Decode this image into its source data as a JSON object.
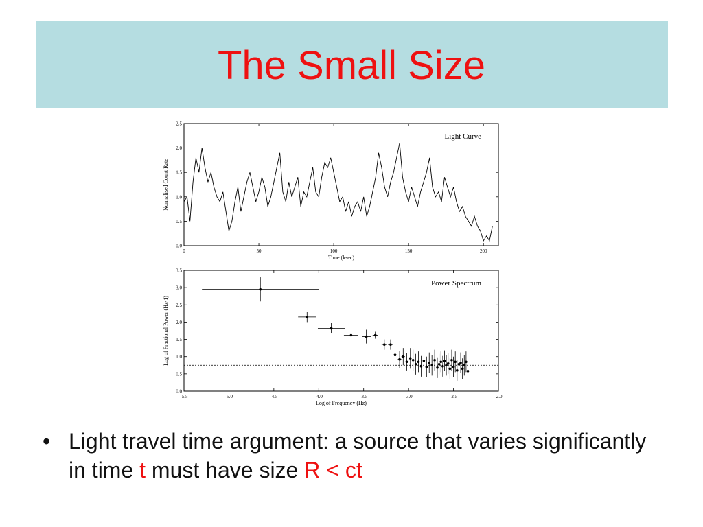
{
  "slide": {
    "title": "The Small Size",
    "bullet_marker": "•",
    "bullet_text_1": "Light travel time argument: a source that varies significantly in time ",
    "bullet_t": "t",
    "bullet_text_2": " must have size ",
    "bullet_formula": "R < ct",
    "accent_color": "#ee1111",
    "title_band_color": "#b5dde1"
  },
  "chart_data": [
    {
      "type": "line",
      "title": "Light Curve",
      "xlabel": "Time (ksec)",
      "ylabel": "Normalised Count Rate",
      "xlim": [
        0,
        210
      ],
      "ylim": [
        0,
        2.5
      ],
      "xticks": [
        "0",
        "50",
        "100",
        "150",
        "200"
      ],
      "yticks": [
        "0.0",
        "0.5",
        "1.0",
        "1.5",
        "2.0",
        "2.5"
      ],
      "legend_placement": "top-right",
      "grid": false,
      "series": [
        {
          "x": [
            0,
            2,
            4,
            6,
            8,
            10,
            12,
            14,
            16,
            18,
            20,
            22,
            24,
            26,
            28,
            30,
            32,
            34,
            36,
            38,
            40,
            42,
            44,
            46,
            48,
            50,
            52,
            54,
            56,
            58,
            60,
            62,
            64,
            66,
            68,
            70,
            72,
            74,
            76,
            78,
            80,
            82,
            84,
            86,
            88,
            90,
            92,
            94,
            96,
            98,
            100,
            102,
            104,
            106,
            108,
            110,
            112,
            114,
            116,
            118,
            120,
            122,
            124,
            126,
            128,
            130,
            132,
            134,
            136,
            138,
            140,
            142,
            144,
            146,
            148,
            150,
            152,
            154,
            156,
            158,
            160,
            162,
            164,
            166,
            168,
            170,
            172,
            174,
            176,
            178,
            180,
            182,
            184,
            186,
            188,
            190,
            192,
            194,
            196,
            198,
            200,
            202,
            204,
            206
          ],
          "values": [
            0.9,
            1.0,
            0.5,
            1.3,
            1.8,
            1.5,
            2.0,
            1.6,
            1.3,
            1.5,
            1.2,
            1.0,
            0.9,
            1.1,
            0.7,
            0.3,
            0.5,
            0.9,
            1.2,
            0.7,
            1.0,
            1.3,
            1.5,
            1.2,
            0.9,
            1.1,
            1.4,
            1.2,
            0.8,
            1.0,
            1.3,
            1.6,
            1.9,
            1.1,
            0.9,
            1.3,
            1.0,
            1.2,
            1.4,
            0.8,
            1.1,
            1.0,
            1.3,
            1.6,
            1.1,
            1.0,
            1.4,
            1.7,
            1.6,
            1.8,
            1.5,
            1.2,
            0.9,
            1.0,
            0.7,
            0.9,
            0.6,
            0.8,
            0.9,
            0.7,
            1.0,
            0.6,
            0.8,
            1.1,
            1.4,
            1.9,
            1.6,
            1.2,
            1.0,
            1.3,
            1.5,
            1.8,
            2.1,
            1.4,
            1.1,
            0.9,
            1.2,
            1.0,
            0.8,
            1.1,
            1.3,
            1.5,
            1.8,
            1.2,
            1.0,
            1.1,
            0.9,
            1.4,
            1.2,
            1.0,
            1.2,
            0.9,
            0.7,
            0.8,
            0.6,
            0.5,
            0.4,
            0.6,
            0.4,
            0.3,
            0.1,
            0.2,
            0.1,
            0.4
          ]
        }
      ]
    },
    {
      "type": "scatter",
      "title": "Power Spectrum",
      "xlabel": "Log of Frequency (Hz)",
      "ylabel": "Log of Fractional Power (Hz-1)",
      "xlim": [
        -5.5,
        -2.0
      ],
      "ylim": [
        0.0,
        3.5
      ],
      "xticks": [
        "-5.5",
        "-5.0",
        "-4.5",
        "-4.0",
        "-3.5",
        "-3.0",
        "-2.5",
        "-2.0"
      ],
      "yticks": [
        "0.0",
        "0.5",
        "1.0",
        "1.5",
        "2.0",
        "2.5",
        "3.0",
        "3.5"
      ],
      "reference_line_y": 0.75,
      "legend_placement": "top-right",
      "grid": false,
      "series": [
        {
          "x": [
            -4.65,
            -4.13,
            -3.86,
            -3.64,
            -3.47,
            -3.37,
            -3.27,
            -3.2,
            -3.15,
            -3.1,
            -3.06,
            -3.02,
            -2.98,
            -2.95,
            -2.92,
            -2.89,
            -2.86,
            -2.83,
            -2.8,
            -2.77,
            -2.74,
            -2.71,
            -2.68,
            -2.66,
            -2.64,
            -2.62,
            -2.6,
            -2.58,
            -2.56,
            -2.54,
            -2.52,
            -2.5,
            -2.48,
            -2.46,
            -2.44,
            -2.42,
            -2.4,
            -2.38,
            -2.36,
            -2.34
          ],
          "y": [
            2.95,
            2.15,
            1.82,
            1.62,
            1.58,
            1.62,
            1.35,
            1.35,
            1.05,
            0.92,
            1.0,
            0.85,
            0.95,
            0.9,
            0.78,
            0.85,
            0.72,
            0.88,
            0.7,
            0.82,
            0.75,
            0.9,
            0.68,
            0.78,
            0.85,
            0.72,
            0.88,
            0.75,
            0.8,
            0.65,
            0.9,
            0.7,
            0.85,
            0.6,
            0.78,
            0.82,
            0.65,
            0.75,
            0.85,
            0.58
          ],
          "xerr": [
            0.65,
            0.1,
            0.15,
            0.08,
            0.05,
            0.03,
            0.03,
            0.03,
            0.02,
            0.02,
            0.02,
            0.02,
            0.01,
            0.01,
            0.01,
            0.01,
            0.01,
            0.01,
            0.01,
            0.01,
            0.01,
            0.01,
            0.01,
            0.01,
            0.01,
            0.01,
            0.01,
            0.01,
            0.01,
            0.01,
            0.01,
            0.01,
            0.01,
            0.01,
            0.01,
            0.01,
            0.01,
            0.01,
            0.01,
            0.01
          ],
          "yerr": [
            0.35,
            0.15,
            0.15,
            0.25,
            0.2,
            0.1,
            0.15,
            0.15,
            0.2,
            0.25,
            0.25,
            0.25,
            0.3,
            0.3,
            0.3,
            0.3,
            0.3,
            0.3,
            0.3,
            0.3,
            0.3,
            0.3,
            0.3,
            0.3,
            0.3,
            0.3,
            0.3,
            0.3,
            0.3,
            0.3,
            0.3,
            0.3,
            0.3,
            0.3,
            0.3,
            0.3,
            0.3,
            0.3,
            0.3,
            0.3
          ]
        }
      ]
    }
  ]
}
